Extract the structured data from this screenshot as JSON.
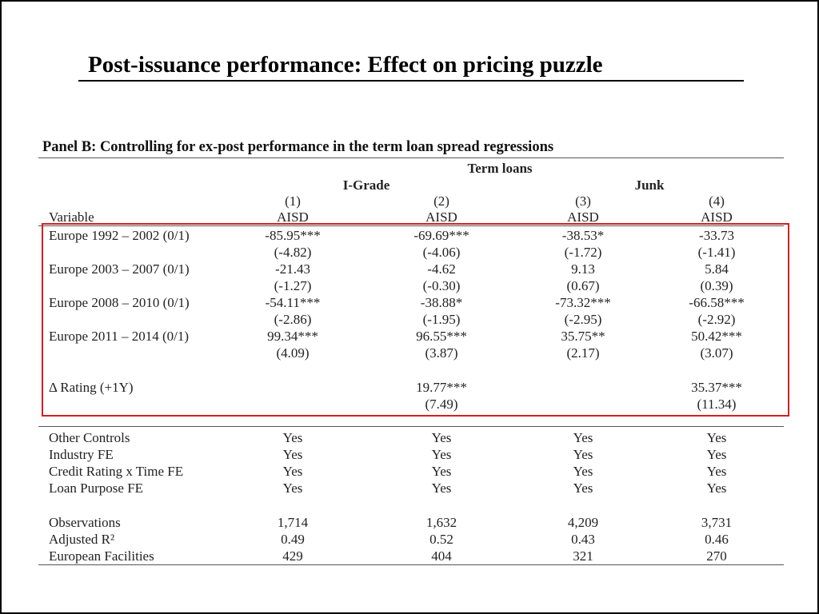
{
  "slide_title": "Post-issuance performance: Effect on pricing puzzle",
  "panel_title": "Panel B: Controlling for ex-post performance in the term loan spread regressions",
  "header": {
    "group": "Term loans",
    "igrade": "I-Grade",
    "junk": "Junk",
    "col_numbers": [
      "(1)",
      "(2)",
      "(3)",
      "(4)"
    ],
    "variable_label": "Variable",
    "col_labels": [
      "AISD",
      "AISD",
      "AISD",
      "AISD"
    ]
  },
  "rows": [
    {
      "label": "Europe 1992 – 2002 (0/1)",
      "coef": [
        "-85.95***",
        "-69.69***",
        "-38.53*",
        "-33.73"
      ],
      "tstat": [
        "(-4.82)",
        "(-4.06)",
        "(-1.72)",
        "(-1.41)"
      ]
    },
    {
      "label": "Europe 2003 – 2007 (0/1)",
      "coef": [
        "-21.43",
        "-4.62",
        "9.13",
        "5.84"
      ],
      "tstat": [
        "(-1.27)",
        "(-0.30)",
        "(0.67)",
        "(0.39)"
      ]
    },
    {
      "label": "Europe 2008 – 2010 (0/1)",
      "coef": [
        "-54.11***",
        "-38.88*",
        "-73.32***",
        "-66.58***"
      ],
      "tstat": [
        "(-2.86)",
        "(-1.95)",
        "(-2.95)",
        "(-2.92)"
      ]
    },
    {
      "label": "Europe 2011 – 2014 (0/1)",
      "coef": [
        "99.34***",
        "96.55***",
        "35.75**",
        "50.42***"
      ],
      "tstat": [
        "(4.09)",
        "(3.87)",
        "(2.17)",
        "(3.07)"
      ]
    },
    {
      "label": "Δ Rating (+1Y)",
      "coef": [
        "",
        "19.77***",
        "",
        "35.37***"
      ],
      "tstat": [
        "",
        "(7.49)",
        "",
        "(11.34)"
      ]
    }
  ],
  "controls": [
    {
      "label": "Other Controls",
      "values": [
        "Yes",
        "Yes",
        "Yes",
        "Yes"
      ]
    },
    {
      "label": "Industry FE",
      "values": [
        "Yes",
        "Yes",
        "Yes",
        "Yes"
      ]
    },
    {
      "label": "Credit Rating x Time FE",
      "values": [
        "Yes",
        "Yes",
        "Yes",
        "Yes"
      ]
    },
    {
      "label": "Loan Purpose FE",
      "values": [
        "Yes",
        "Yes",
        "Yes",
        "Yes"
      ]
    }
  ],
  "stats": [
    {
      "label": "Observations",
      "values": [
        "1,714",
        "1,632",
        "4,209",
        "3,731"
      ]
    },
    {
      "label": "Adjusted R²",
      "values": [
        "0.49",
        "0.52",
        "0.43",
        "0.46"
      ]
    },
    {
      "label": "European Facilities",
      "values": [
        "429",
        "404",
        "321",
        "270"
      ]
    }
  ],
  "colors": {
    "highlight_box": "#d42020",
    "rules": "#555555"
  }
}
